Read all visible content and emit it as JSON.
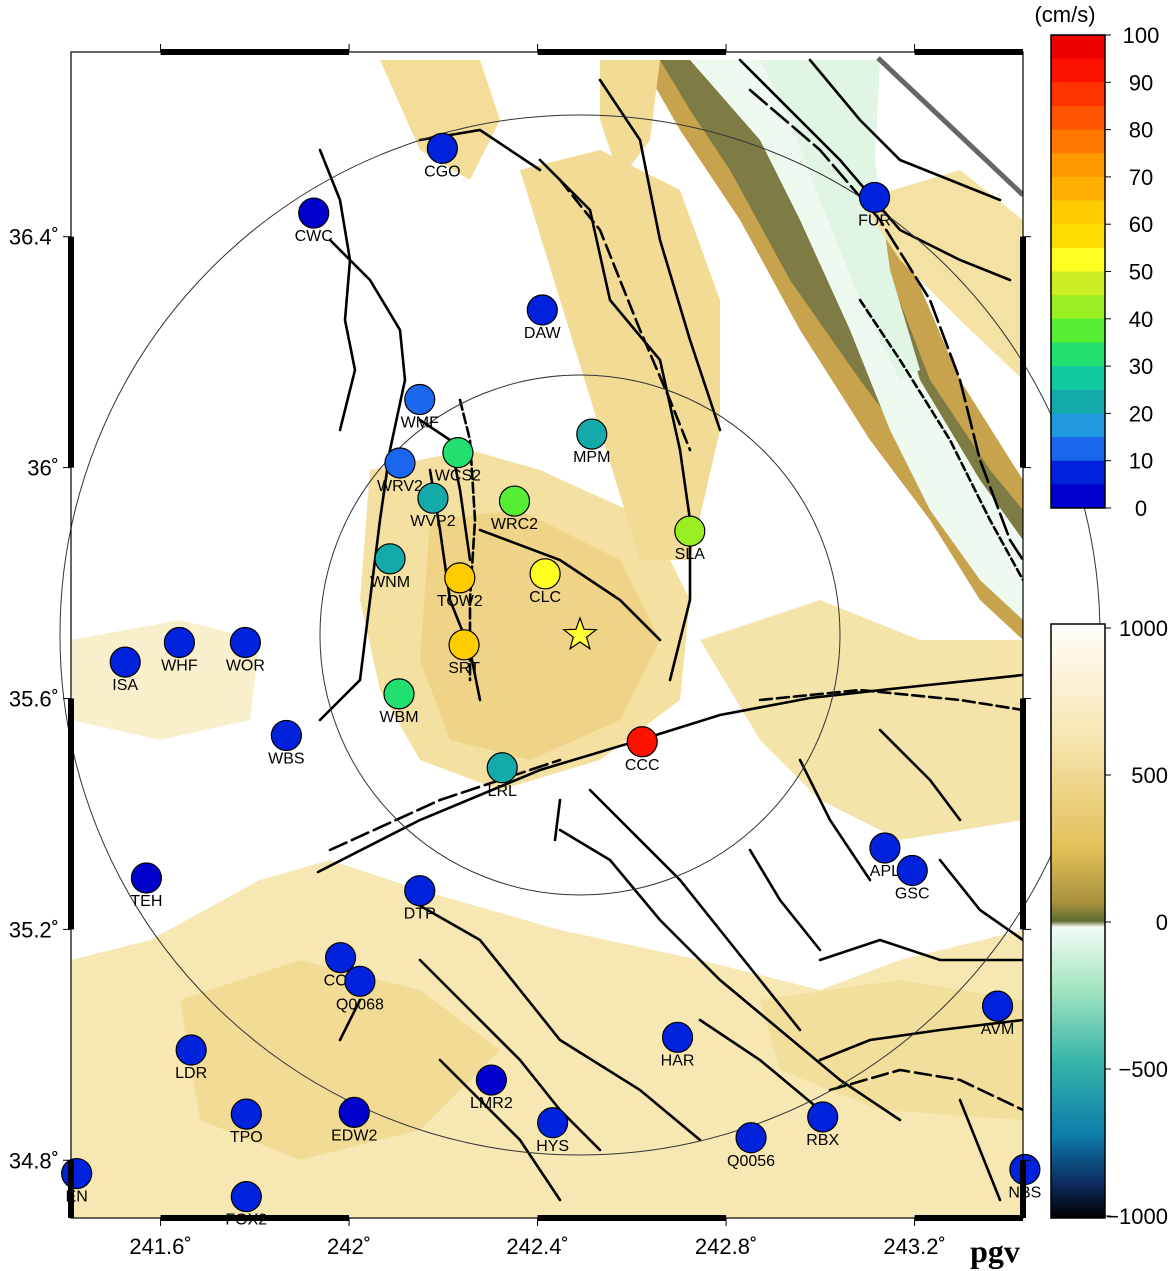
{
  "map": {
    "lon_ticks": [
      {
        "value": 241.6,
        "label": "241.6˚"
      },
      {
        "value": 242.0,
        "label": "242˚"
      },
      {
        "value": 242.4,
        "label": "242.4˚"
      },
      {
        "value": 242.8,
        "label": "242.8˚"
      },
      {
        "value": 243.2,
        "label": "243.2˚"
      }
    ],
    "lat_ticks": [
      {
        "value": 36.4,
        "label": "36.4˚"
      },
      {
        "value": 36.0,
        "label": "36˚"
      },
      {
        "value": 35.6,
        "label": "35.6˚"
      },
      {
        "value": 35.2,
        "label": "35.2˚"
      },
      {
        "value": 34.8,
        "label": "34.8˚"
      }
    ],
    "epicenter": {
      "lon": 242.49,
      "lat": 35.71,
      "icon": "star-icon",
      "color": "#ffff33"
    },
    "circle_radii_km": [
      50,
      100
    ],
    "label": "pgv"
  },
  "stations": [
    {
      "code": "CGO",
      "lon": 242.198,
      "lat": 36.553,
      "pgv": 5
    },
    {
      "code": "CWC",
      "lon": 241.925,
      "lat": 36.441,
      "pgv": 4
    },
    {
      "code": "FUR",
      "lon": 243.115,
      "lat": 36.468,
      "pgv": 7
    },
    {
      "code": "DAW",
      "lon": 242.41,
      "lat": 36.273,
      "pgv": 5
    },
    {
      "code": "WMF",
      "lon": 242.15,
      "lat": 36.118,
      "pgv": 10
    },
    {
      "code": "MPM",
      "lon": 242.515,
      "lat": 36.058,
      "pgv": 22
    },
    {
      "code": "WCS2",
      "lon": 242.231,
      "lat": 36.026,
      "pgv": 33
    },
    {
      "code": "WRV2",
      "lon": 242.108,
      "lat": 36.008,
      "pgv": 10
    },
    {
      "code": "WVP2",
      "lon": 242.178,
      "lat": 35.947,
      "pgv": 22
    },
    {
      "code": "WRC2",
      "lon": 242.351,
      "lat": 35.942,
      "pgv": 36
    },
    {
      "code": "SLA",
      "lon": 242.723,
      "lat": 35.89,
      "pgv": 42
    },
    {
      "code": "WNM",
      "lon": 242.087,
      "lat": 35.842,
      "pgv": 21
    },
    {
      "code": "TOW2",
      "lon": 242.235,
      "lat": 35.809,
      "pgv": 62
    },
    {
      "code": "CLC",
      "lon": 242.416,
      "lat": 35.816,
      "pgv": 50
    },
    {
      "code": "SRT",
      "lon": 242.244,
      "lat": 35.693,
      "pgv": 63
    },
    {
      "code": "WHF",
      "lon": 241.64,
      "lat": 35.697,
      "pgv": 8
    },
    {
      "code": "WOR",
      "lon": 241.78,
      "lat": 35.697,
      "pgv": 8
    },
    {
      "code": "ISA",
      "lon": 241.525,
      "lat": 35.663,
      "pgv": 5
    },
    {
      "code": "WBM",
      "lon": 242.106,
      "lat": 35.608,
      "pgv": 32
    },
    {
      "code": "WBS",
      "lon": 241.867,
      "lat": 35.536,
      "pgv": 9
    },
    {
      "code": "CCC",
      "lon": 242.622,
      "lat": 35.525,
      "pgv": 90
    },
    {
      "code": "LRL",
      "lon": 242.325,
      "lat": 35.48,
      "pgv": 22
    },
    {
      "code": "TEH",
      "lon": 241.57,
      "lat": 35.289,
      "pgv": 4
    },
    {
      "code": "APL",
      "lon": 243.137,
      "lat": 35.341,
      "pgv": 8
    },
    {
      "code": "GSC",
      "lon": 243.195,
      "lat": 35.302,
      "pgv": 7
    },
    {
      "code": "DTP",
      "lon": 242.15,
      "lat": 35.267,
      "pgv": 7
    },
    {
      "code": "CCA",
      "lon": 241.982,
      "lat": 35.151,
      "pgv": 6
    },
    {
      "code": "Q0068",
      "lon": 242.023,
      "lat": 35.11,
      "pgv": 6
    },
    {
      "code": "AVM",
      "lon": 243.376,
      "lat": 35.067,
      "pgv": 7
    },
    {
      "code": "HAR",
      "lon": 242.697,
      "lat": 35.013,
      "pgv": 8
    },
    {
      "code": "LDR",
      "lon": 241.665,
      "lat": 34.991,
      "pgv": 5
    },
    {
      "code": "LMR2",
      "lon": 242.302,
      "lat": 34.939,
      "pgv": 4
    },
    {
      "code": "TPO",
      "lon": 241.782,
      "lat": 34.88,
      "pgv": 6
    },
    {
      "code": "EDW2",
      "lon": 242.011,
      "lat": 34.883,
      "pgv": 4
    },
    {
      "code": "HYS",
      "lon": 242.432,
      "lat": 34.865,
      "pgv": 5
    },
    {
      "code": "RBX",
      "lon": 243.005,
      "lat": 34.875,
      "pgv": 9
    },
    {
      "code": "Q0056",
      "lon": 242.853,
      "lat": 34.839,
      "pgv": 7
    },
    {
      "code": "EN",
      "lon": 241.422,
      "lat": 34.777,
      "pgv": 6
    },
    {
      "code": "NBS",
      "lon": 243.434,
      "lat": 34.784,
      "pgv": 7
    },
    {
      "code": "FOX2",
      "lon": 241.782,
      "lat": 34.737,
      "pgv": 5
    }
  ],
  "pgv_scale": {
    "unit": "(cm/s)",
    "min": 0,
    "max": 100,
    "labels": [
      "100",
      "90",
      "80",
      "70",
      "60",
      "50",
      "40",
      "30",
      "20",
      "10",
      "0"
    ]
  },
  "topo_scale": {
    "min": -1000,
    "max": 1000,
    "labels": [
      "1000",
      "500",
      "0",
      "−500",
      "−1000"
    ]
  },
  "colors": {
    "frame": "#000000",
    "land": "#f5e2a4",
    "land_dark": "#e8c865",
    "ridge": "#7a6a3c",
    "valley": "#eef9ee",
    "fault": "#000000"
  }
}
